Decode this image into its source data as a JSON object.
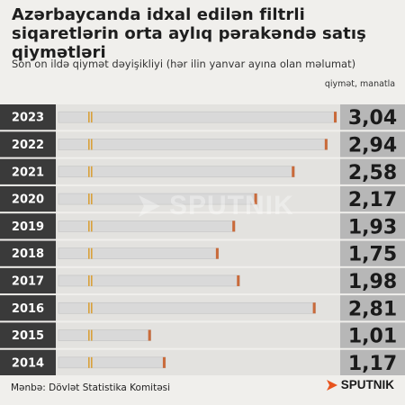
{
  "title": "Azərbaycanda idxal edilən filtrli siqaretlərin orta aylıq pərakəndə satış qiymətləri",
  "subtitle": "Son on ildə qiymət dəyişikliyi (hər ilin yanvar ayına olan məlumat)",
  "unit_label": "qiymət, manatla",
  "source": "Mənbə: Dövlət Statistika Komitəsi",
  "brand": "SPUTNIK",
  "watermark": "SPUTNIK",
  "colors": {
    "background": "#f0efec",
    "row_band": "#e3e2df",
    "year_column": "#3a3a3a",
    "value_column": "#b7b7b7",
    "cigarette_body": "#d9d9d9",
    "cigarette_filter_band": "#d9a13a",
    "cigarette_tip": "#c96a3a"
  },
  "chart_data": {
    "type": "bar",
    "orientation": "horizontal",
    "categories": [
      "2023",
      "2022",
      "2021",
      "2020",
      "2019",
      "2018",
      "2017",
      "2016",
      "2015",
      "2014"
    ],
    "values": [
      3.04,
      2.94,
      2.58,
      2.17,
      1.93,
      1.75,
      1.98,
      2.81,
      1.01,
      1.17
    ],
    "value_labels": [
      "3,04",
      "2,94",
      "2,58",
      "2,17",
      "1,93",
      "1,75",
      "1,98",
      "2,81",
      "1,01",
      "1,17"
    ],
    "title": "Azərbaycanda idxal edilən filtrli siqaretlərin orta aylıq pərakəndə satış qiymətləri",
    "ylabel": "qiymət, manatla",
    "xlim": [
      0,
      3.04
    ],
    "bar_style": "cigarette"
  }
}
